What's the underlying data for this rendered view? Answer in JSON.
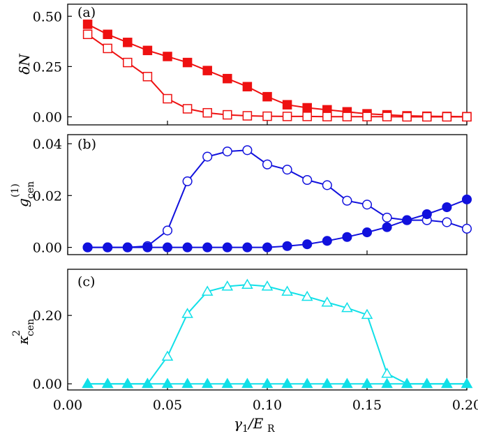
{
  "chart_data": [
    {
      "type": "line",
      "panel_label": "(a)",
      "ylabel": "δN",
      "xlabel": "",
      "xlim": [
        0.0,
        0.2
      ],
      "ylim": [
        -0.04,
        0.56
      ],
      "x_ticks": [
        0.0,
        0.05,
        0.1,
        0.15,
        0.2
      ],
      "y_ticks": [
        "0.00",
        "0.25",
        "0.50"
      ],
      "x": [
        0.01,
        0.02,
        0.03,
        0.04,
        0.05,
        0.06,
        0.07,
        0.08,
        0.09,
        0.1,
        0.11,
        0.12,
        0.13,
        0.14,
        0.15,
        0.16,
        0.17,
        0.18,
        0.19,
        0.2
      ],
      "series": [
        {
          "name": "filled squares",
          "marker": "square",
          "filled": true,
          "color": "#ee1111",
          "values": [
            0.46,
            0.41,
            0.37,
            0.33,
            0.3,
            0.27,
            0.23,
            0.19,
            0.15,
            0.1,
            0.06,
            0.045,
            0.035,
            0.025,
            0.015,
            0.01,
            0.005,
            0.003,
            0.002,
            0.001
          ]
        },
        {
          "name": "open squares",
          "marker": "square",
          "filled": false,
          "color": "#ee1111",
          "values": [
            0.41,
            0.34,
            0.27,
            0.2,
            0.09,
            0.04,
            0.02,
            0.01,
            0.005,
            0.003,
            0.002,
            0.002,
            0.001,
            0.001,
            0.001,
            0.001,
            0.0,
            0.0,
            0.0,
            0.0
          ]
        }
      ]
    },
    {
      "type": "line",
      "panel_label": "(b)",
      "ylabel": "g_cen^(1)",
      "xlabel": "",
      "xlim": [
        0.0,
        0.2
      ],
      "ylim": [
        -0.0028,
        0.0435
      ],
      "x_ticks": [
        0.0,
        0.05,
        0.1,
        0.15,
        0.2
      ],
      "y_ticks": [
        "0.00",
        "0.02",
        "0.04"
      ],
      "x": [
        0.01,
        0.02,
        0.03,
        0.04,
        0.05,
        0.06,
        0.07,
        0.08,
        0.09,
        0.1,
        0.11,
        0.12,
        0.13,
        0.14,
        0.15,
        0.16,
        0.17,
        0.18,
        0.19,
        0.2
      ],
      "series": [
        {
          "name": "open circles",
          "marker": "circle",
          "filled": false,
          "color": "#1111dd",
          "values": [
            0.0,
            0.0,
            0.0,
            0.0005,
            0.0065,
            0.0255,
            0.035,
            0.037,
            0.0375,
            0.032,
            0.03,
            0.026,
            0.024,
            0.018,
            0.0165,
            0.0115,
            0.0105,
            0.0105,
            0.0097,
            0.0072
          ]
        },
        {
          "name": "filled circles",
          "marker": "circle",
          "filled": true,
          "color": "#1111dd",
          "values": [
            0.0,
            0.0,
            0.0,
            0.0,
            0.0,
            0.0,
            0.0,
            0.0,
            0.0,
            0.0,
            0.0005,
            0.0012,
            0.0025,
            0.004,
            0.0058,
            0.0078,
            0.0105,
            0.0128,
            0.0155,
            0.0185
          ]
        }
      ]
    },
    {
      "type": "line",
      "panel_label": "(c)",
      "ylabel": "κ_cen^2",
      "xlabel": "γ1/ER",
      "xlim": [
        0.0,
        0.2
      ],
      "ylim": [
        -0.018,
        0.335
      ],
      "x_ticks": [
        "0.00",
        "0.05",
        "0.10",
        "0.15",
        "0.20"
      ],
      "y_ticks": [
        "0.00",
        "0.20"
      ],
      "x": [
        0.01,
        0.02,
        0.03,
        0.04,
        0.05,
        0.06,
        0.07,
        0.08,
        0.09,
        0.1,
        0.11,
        0.12,
        0.13,
        0.14,
        0.15,
        0.16,
        0.17,
        0.18,
        0.19,
        0.2
      ],
      "series": [
        {
          "name": "open triangles",
          "marker": "triangle",
          "filled": false,
          "color": "#11e0e8",
          "values": [
            0.0,
            0.0,
            0.0,
            0.0,
            0.08,
            0.205,
            0.27,
            0.285,
            0.29,
            0.285,
            0.27,
            0.255,
            0.238,
            0.222,
            0.202,
            0.03,
            0.0,
            0.0,
            0.0,
            0.0
          ]
        },
        {
          "name": "filled triangles",
          "marker": "triangle",
          "filled": true,
          "color": "#11e0e8",
          "values": [
            0.0,
            0.0,
            0.0,
            0.0,
            0.0,
            0.0,
            0.0,
            0.0,
            0.0,
            0.0,
            0.0,
            0.0,
            0.0,
            0.0,
            0.0,
            0.0,
            0.0,
            0.0,
            0.0,
            0.0
          ]
        }
      ]
    }
  ],
  "labels": {
    "a_ylabel_main": "δN",
    "b_ylabel_main": "g",
    "b_ylabel_sub": "cen",
    "b_ylabel_sup": "(1)",
    "c_ylabel_main": "κ",
    "c_ylabel_sub": "cen",
    "c_ylabel_sup": "2",
    "x_main": "γ",
    "x_sub1": "1",
    "x_mid": "/E",
    "x_sub2": "R"
  }
}
